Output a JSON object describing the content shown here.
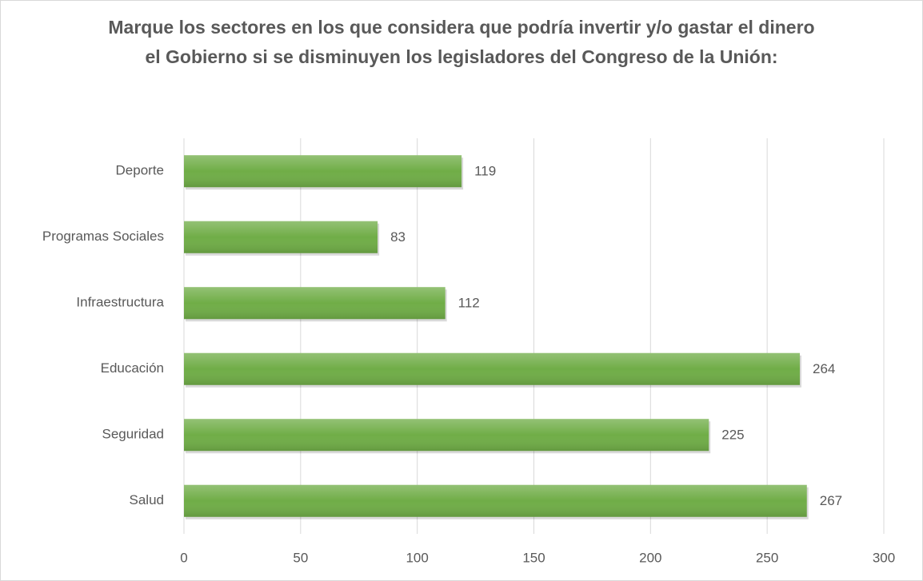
{
  "chart_data": {
    "type": "bar",
    "orientation": "horizontal",
    "title": "Marque los sectores en los que considera que podría invertir y/o gastar el dinero el Gobierno si se disminuyen los legisladores del Congreso de la Unión:",
    "categories": [
      "Deporte",
      "Programas Sociales",
      "Infraestructura",
      "Educación",
      "Seguridad",
      "Salud"
    ],
    "values": [
      119,
      83,
      112,
      264,
      225,
      267
    ],
    "color": "#70ad47",
    "xlim": [
      0,
      300
    ],
    "xticks": [
      0,
      50,
      100,
      150,
      200,
      250,
      300
    ],
    "grid": true
  }
}
